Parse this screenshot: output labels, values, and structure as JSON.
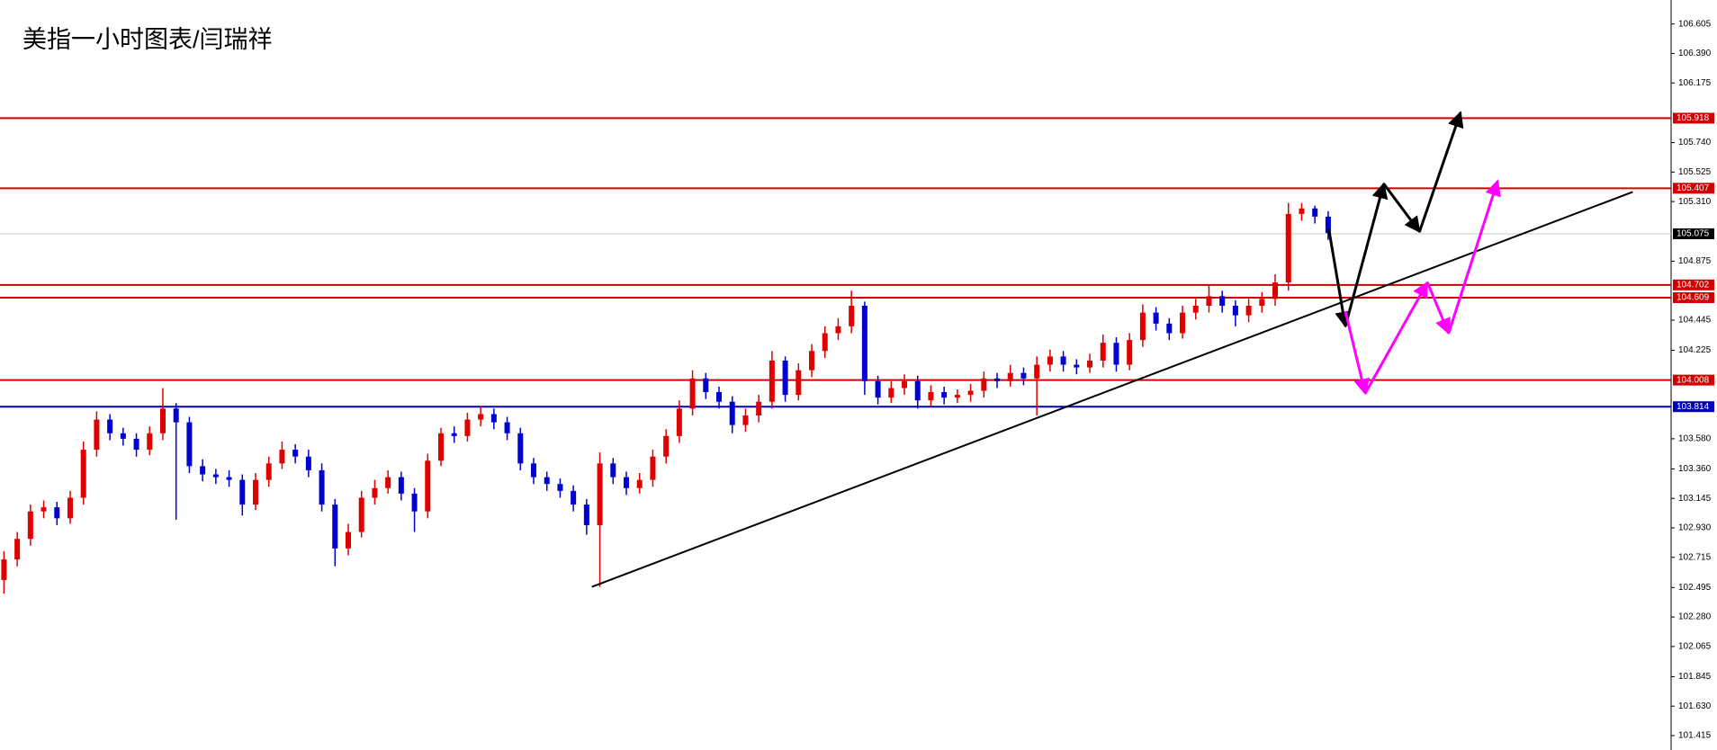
{
  "chart_data": {
    "type": "candlestick",
    "title": "美指一小时图表/闫瑞祥",
    "up_color": "#e00000",
    "down_color": "#0000d0",
    "open": [
      102.55,
      102.7,
      102.85,
      103.05,
      103.08,
      103.0,
      103.15,
      103.5,
      103.72,
      103.62,
      103.58,
      103.5,
      103.62,
      103.8,
      103.7,
      103.38,
      103.32,
      103.3,
      103.28,
      103.1,
      103.28,
      103.4,
      103.5,
      103.45,
      103.35,
      103.1,
      102.78,
      102.9,
      103.15,
      103.22,
      103.3,
      103.18,
      103.05,
      103.42,
      103.62,
      103.6,
      103.72,
      103.76,
      103.7,
      103.62,
      103.4,
      103.3,
      103.25,
      103.2,
      103.1,
      102.95,
      103.4,
      103.3,
      103.22,
      103.28,
      103.45,
      103.6,
      103.8,
      104.02,
      103.92,
      103.85,
      103.68,
      103.75,
      103.85,
      104.15,
      103.9,
      104.08,
      104.22,
      104.35,
      104.4,
      104.55,
      104.0,
      103.88,
      103.95,
      104.0,
      103.86,
      103.92,
      103.88,
      103.9,
      103.93,
      104.02,
      104.0,
      104.06,
      104.02,
      104.12,
      104.18,
      104.12,
      104.1,
      104.15,
      104.28,
      104.12,
      104.3,
      104.5,
      104.42,
      104.35,
      104.5,
      104.55,
      104.62,
      104.55,
      104.48,
      104.55,
      104.6,
      104.72,
      105.22,
      105.26,
      105.2
    ],
    "high": [
      102.76,
      102.9,
      103.1,
      103.13,
      103.12,
      103.2,
      103.56,
      103.78,
      103.76,
      103.66,
      103.62,
      103.67,
      103.95,
      103.84,
      103.74,
      103.43,
      103.36,
      103.35,
      103.32,
      103.33,
      103.45,
      103.56,
      103.54,
      103.5,
      103.4,
      103.14,
      102.96,
      103.2,
      103.28,
      103.35,
      103.34,
      103.22,
      103.47,
      103.66,
      103.67,
      103.77,
      103.82,
      103.8,
      103.74,
      103.66,
      103.44,
      103.34,
      103.29,
      103.24,
      103.14,
      103.48,
      103.44,
      103.34,
      103.33,
      103.5,
      103.65,
      103.86,
      104.08,
      104.06,
      103.96,
      103.89,
      103.8,
      103.9,
      104.22,
      104.18,
      104.13,
      104.27,
      104.4,
      104.46,
      104.66,
      104.58,
      104.04,
      104.0,
      104.05,
      104.04,
      103.97,
      103.96,
      103.94,
      103.98,
      104.07,
      104.06,
      104.12,
      104.1,
      104.18,
      104.23,
      104.22,
      104.16,
      104.2,
      104.34,
      104.32,
      104.35,
      104.56,
      104.54,
      104.46,
      104.55,
      104.6,
      104.7,
      104.66,
      104.59,
      104.6,
      104.65,
      104.78,
      105.3,
      105.3,
      105.28,
      105.24
    ],
    "low": [
      102.45,
      102.65,
      102.8,
      103.0,
      102.95,
      102.96,
      103.1,
      103.45,
      103.57,
      103.53,
      103.45,
      103.46,
      103.57,
      102.99,
      103.33,
      103.27,
      103.25,
      103.23,
      103.02,
      103.06,
      103.23,
      103.36,
      103.4,
      103.3,
      103.05,
      102.65,
      102.73,
      102.86,
      103.1,
      103.18,
      103.13,
      102.9,
      103.0,
      103.38,
      103.55,
      103.56,
      103.67,
      103.65,
      103.57,
      103.35,
      103.25,
      103.2,
      103.15,
      103.05,
      102.88,
      102.5,
      103.25,
      103.17,
      103.18,
      103.23,
      103.4,
      103.55,
      103.75,
      103.87,
      103.8,
      103.62,
      103.63,
      103.7,
      103.8,
      103.85,
      103.86,
      104.03,
      104.17,
      104.3,
      104.35,
      103.9,
      103.83,
      103.84,
      103.9,
      103.8,
      103.82,
      103.83,
      103.84,
      103.85,
      103.88,
      103.95,
      103.96,
      103.97,
      103.75,
      104.07,
      104.07,
      104.05,
      104.06,
      104.1,
      104.07,
      104.08,
      104.25,
      104.37,
      104.3,
      104.31,
      104.45,
      104.5,
      104.5,
      104.4,
      104.43,
      104.5,
      104.55,
      104.66,
      105.17,
      105.15,
      105.03
    ],
    "close": [
      102.7,
      102.85,
      103.05,
      103.08,
      103.0,
      103.15,
      103.5,
      103.72,
      103.62,
      103.58,
      103.5,
      103.62,
      103.8,
      103.7,
      103.38,
      103.32,
      103.3,
      103.28,
      103.1,
      103.28,
      103.4,
      103.5,
      103.45,
      103.35,
      103.1,
      102.78,
      102.9,
      103.15,
      103.22,
      103.3,
      103.18,
      103.05,
      103.42,
      103.62,
      103.6,
      103.72,
      103.76,
      103.7,
      103.62,
      103.4,
      103.3,
      103.25,
      103.2,
      103.1,
      102.95,
      103.4,
      103.3,
      103.22,
      103.28,
      103.45,
      103.6,
      103.8,
      104.02,
      103.92,
      103.85,
      103.68,
      103.75,
      103.85,
      104.15,
      103.9,
      104.08,
      104.22,
      104.35,
      104.4,
      104.55,
      104.0,
      103.88,
      103.95,
      104.0,
      103.86,
      103.92,
      103.88,
      103.9,
      103.93,
      104.02,
      104.0,
      104.06,
      104.02,
      104.12,
      104.18,
      104.12,
      104.1,
      104.15,
      104.28,
      104.12,
      104.3,
      104.5,
      104.42,
      104.35,
      104.5,
      104.55,
      104.62,
      104.55,
      104.48,
      104.55,
      104.6,
      104.72,
      105.22,
      105.26,
      105.2,
      105.08
    ],
    "xlim": [
      -0.3,
      125.9
    ],
    "ylim": [
      101.31,
      106.78
    ],
    "yticks": [
      106.605,
      {
        "value": 106.39,
        "label": "106.390"
      },
      106.175,
      {
        "value": 105.74,
        "label": "105.740"
      },
      105.525,
      {
        "value": 105.31,
        "label": "105.310"
      },
      104.875,
      104.445,
      104.225,
      {
        "value": 103.58,
        "label": "103.580"
      },
      {
        "value": 103.36,
        "label": "103.360"
      },
      103.145,
      {
        "value": 102.93,
        "label": "102.930"
      },
      102.715,
      102.495,
      {
        "value": 102.28,
        "label": "102.280"
      },
      102.065,
      101.845,
      {
        "value": 101.63,
        "label": "101.630"
      },
      101.415
    ],
    "levels": [
      {
        "value": 105.918,
        "color": "#d00000"
      },
      {
        "value": 105.407,
        "color": "#d00000"
      },
      {
        "value": 105.075,
        "color": "#c8c8c8",
        "label_color": "#000000"
      },
      {
        "value": 104.702,
        "color": "#d00000"
      },
      {
        "value": 104.609,
        "color": "#d00000"
      },
      {
        "value": 104.008,
        "color": "#d00000"
      },
      {
        "value": 103.814,
        "color": "#0000c0"
      }
    ],
    "trendline": {
      "color": "#000000",
      "x": [
        44.4,
        123.0
      ],
      "y": [
        102.5,
        105.38
      ]
    },
    "projections": [
      {
        "color": "#000000",
        "x": [
          100.05,
          101.3,
          104.2,
          106.9,
          110.0
        ],
        "y": [
          105.11,
          104.4,
          105.44,
          105.09,
          105.96
        ]
      },
      {
        "color": "#ff00ff",
        "x": [
          101.3,
          102.8,
          107.5,
          109.1,
          112.8
        ],
        "y": [
          104.51,
          103.91,
          104.72,
          104.35,
          105.46
        ]
      }
    ]
  }
}
